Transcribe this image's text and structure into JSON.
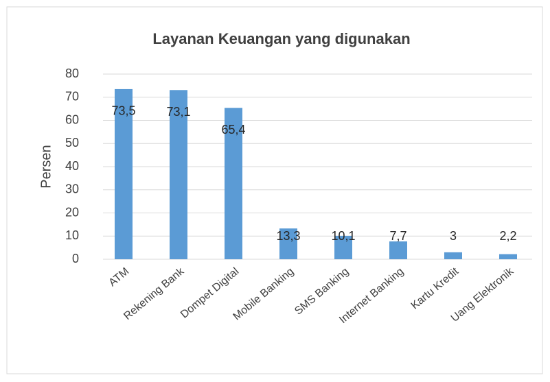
{
  "chart_data": {
    "type": "bar",
    "title": "Layanan Keuangan yang digunakan",
    "y_label": "Persen",
    "categories": [
      "ATM",
      "Rekening Bank",
      "Dompet Digital",
      "Mobile Banking",
      "SMS Banking",
      "Internet Banking",
      "Kartu Kredit",
      "Uang Elektronik"
    ],
    "values": [
      73.5,
      73.1,
      65.4,
      13.3,
      10.1,
      7.7,
      3,
      2.2
    ],
    "value_labels": [
      "73,5",
      "73,1",
      "65,4",
      "13,3",
      "10,1",
      "7,7",
      "3",
      "2,2"
    ],
    "color": "#5b9bd5",
    "ylim": [
      0,
      80
    ],
    "yticks": [
      0,
      10,
      20,
      30,
      40,
      50,
      60,
      70,
      80
    ],
    "grid": true
  }
}
